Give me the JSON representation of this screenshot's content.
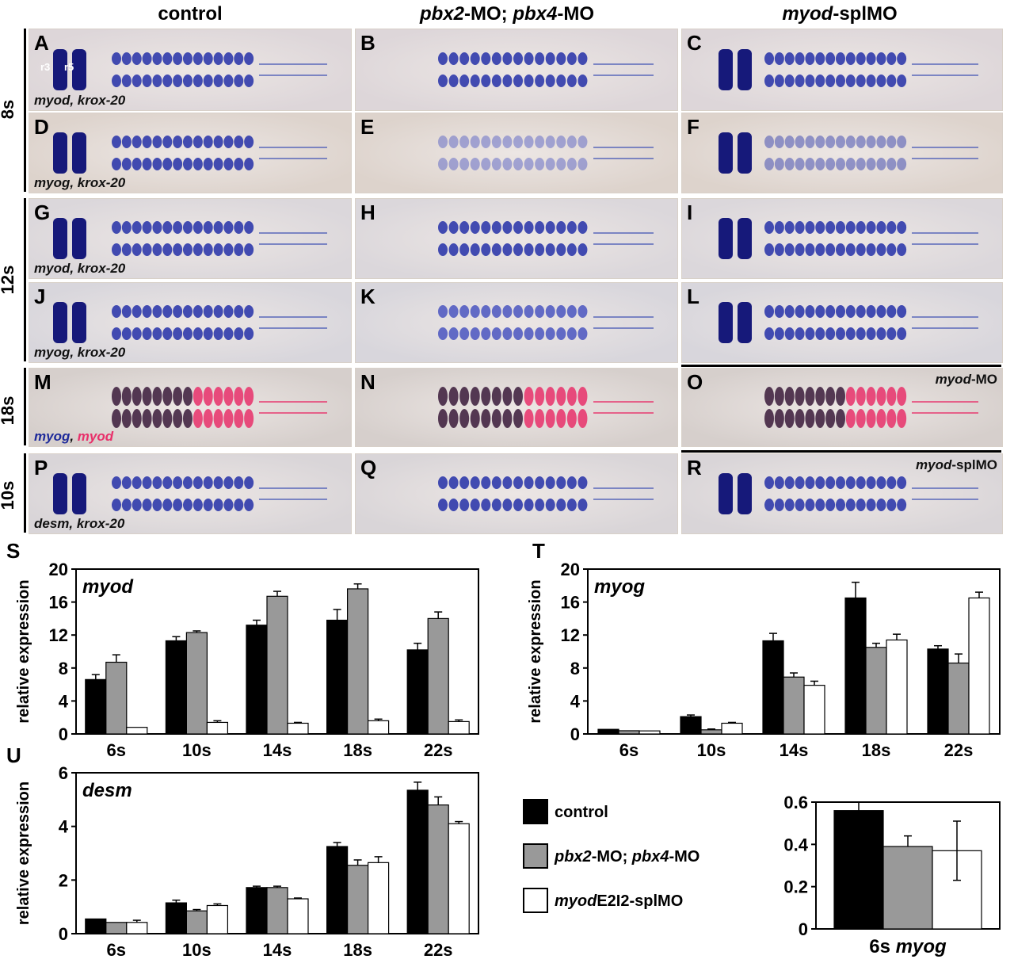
{
  "columns": {
    "control": "control",
    "pbx_italic1": "pbx2",
    "pbx_mid": "-MO; ",
    "pbx_italic2": "pbx4",
    "pbx_end": "-MO",
    "myod_italic": "myod",
    "myod_end": "-splMO"
  },
  "stages": [
    "8s",
    "12s",
    "18s",
    "10s"
  ],
  "panels": [
    {
      "id": "A",
      "cap": "myod, krox-20",
      "r3": "r3",
      "r5": "r5"
    },
    {
      "id": "B",
      "cap": ""
    },
    {
      "id": "C",
      "cap": ""
    },
    {
      "id": "D",
      "cap": "myog, krox-20"
    },
    {
      "id": "E",
      "cap": ""
    },
    {
      "id": "F",
      "cap": ""
    },
    {
      "id": "G",
      "cap": "myod, krox-20"
    },
    {
      "id": "H",
      "cap": ""
    },
    {
      "id": "I",
      "cap": ""
    },
    {
      "id": "J",
      "cap": "myog, krox-20"
    },
    {
      "id": "K",
      "cap": ""
    },
    {
      "id": "L",
      "cap": ""
    },
    {
      "id": "M",
      "cap_blue": "myog",
      "cap_sep": ", ",
      "cap_red": "myod"
    },
    {
      "id": "N",
      "cap": ""
    },
    {
      "id": "O",
      "tag_italic": "myod",
      "tag_end": "-MO"
    },
    {
      "id": "P",
      "cap": "desm, krox-20"
    },
    {
      "id": "Q",
      "cap": ""
    },
    {
      "id": "R",
      "tag_italic": "myod",
      "tag_end": "-splMO"
    }
  ],
  "colors": {
    "control": "#000000",
    "pbx": "#999999",
    "myod_splMO": "#ffffff",
    "stain_blue": "#1e2a9a",
    "stain_red": "#e8306a"
  },
  "legend": {
    "control": "control",
    "pbx_italic1": "pbx2",
    "pbx_mid": "-MO; ",
    "pbx_italic2": "pbx4",
    "pbx_end": "-MO",
    "myod_italic": "myod",
    "myod_end": "E2I2-splMO"
  },
  "chart_data": [
    {
      "panel": "S",
      "type": "bar",
      "title": "myod",
      "ylabel": "relative expression",
      "categories": [
        "6s",
        "10s",
        "14s",
        "18s",
        "22s"
      ],
      "ylim": [
        0,
        20
      ],
      "yticks": [
        0,
        4,
        8,
        12,
        16,
        20
      ],
      "series": [
        {
          "name": "control",
          "values": [
            6.6,
            11.3,
            13.2,
            13.8,
            10.2
          ],
          "errors": [
            0.6,
            0.5,
            0.6,
            1.3,
            0.8
          ]
        },
        {
          "name": "pbx2-MO; pbx4-MO",
          "values": [
            8.7,
            12.3,
            16.7,
            17.6,
            14.0
          ],
          "errors": [
            0.9,
            0.2,
            0.6,
            0.6,
            0.8
          ]
        },
        {
          "name": "myodE2I2-splMO",
          "values": [
            0.8,
            1.4,
            1.3,
            1.6,
            1.5
          ],
          "errors": [
            0,
            0.2,
            0.1,
            0.2,
            0.2
          ]
        }
      ]
    },
    {
      "panel": "T",
      "type": "bar",
      "title": "myog",
      "ylabel": "relative expression",
      "categories": [
        "6s",
        "10s",
        "14s",
        "18s",
        "22s"
      ],
      "ylim": [
        0,
        20
      ],
      "yticks": [
        0,
        4,
        8,
        12,
        16,
        20
      ],
      "series": [
        {
          "name": "control",
          "values": [
            0.56,
            2.1,
            11.3,
            16.5,
            10.3
          ],
          "errors": [
            0,
            0.2,
            0.9,
            1.9,
            0.4
          ]
        },
        {
          "name": "pbx2-MO; pbx4-MO",
          "values": [
            0.39,
            0.5,
            6.9,
            10.5,
            8.6
          ],
          "errors": [
            0,
            0.1,
            0.5,
            0.5,
            1.1
          ]
        },
        {
          "name": "myodE2I2-splMO",
          "values": [
            0.37,
            1.3,
            5.9,
            11.4,
            16.5
          ],
          "errors": [
            0,
            0.1,
            0.5,
            0.7,
            0.7
          ]
        }
      ]
    },
    {
      "panel": "U",
      "type": "bar",
      "title": "desm",
      "ylabel": "relative expression",
      "categories": [
        "6s",
        "10s",
        "14s",
        "18s",
        "22s"
      ],
      "ylim": [
        0,
        6
      ],
      "yticks": [
        0,
        2,
        4,
        6
      ],
      "series": [
        {
          "name": "control",
          "values": [
            0.55,
            1.15,
            1.72,
            3.25,
            5.35
          ],
          "errors": [
            0,
            0.1,
            0.05,
            0.15,
            0.3
          ]
        },
        {
          "name": "pbx2-MO; pbx4-MO",
          "values": [
            0.42,
            0.85,
            1.72,
            2.55,
            4.8
          ],
          "errors": [
            0,
            0.05,
            0.05,
            0.2,
            0.3
          ]
        },
        {
          "name": "myodE2I2-splMO",
          "values": [
            0.42,
            1.05,
            1.3,
            2.65,
            4.1
          ],
          "errors": [
            0.08,
            0.06,
            0.03,
            0.22,
            0.08
          ]
        }
      ]
    },
    {
      "panel": "inset",
      "type": "bar",
      "title": "",
      "xlabel_plain": "6s ",
      "xlabel_italic": "myog",
      "categories": [
        "6s myog"
      ],
      "ylim": [
        0,
        0.6
      ],
      "yticks": [
        0,
        0.2,
        0.4,
        0.6
      ],
      "ytick_labels": [
        "0",
        "0.2",
        "0.4",
        "0.6"
      ],
      "series": [
        {
          "name": "control",
          "values": [
            0.56
          ],
          "errors": [
            0.04
          ]
        },
        {
          "name": "pbx2-MO; pbx4-MO",
          "values": [
            0.39
          ],
          "errors": [
            0.05
          ]
        },
        {
          "name": "myodE2I2-splMO",
          "values": [
            0.37
          ],
          "errors": [
            0.14
          ]
        }
      ]
    }
  ]
}
